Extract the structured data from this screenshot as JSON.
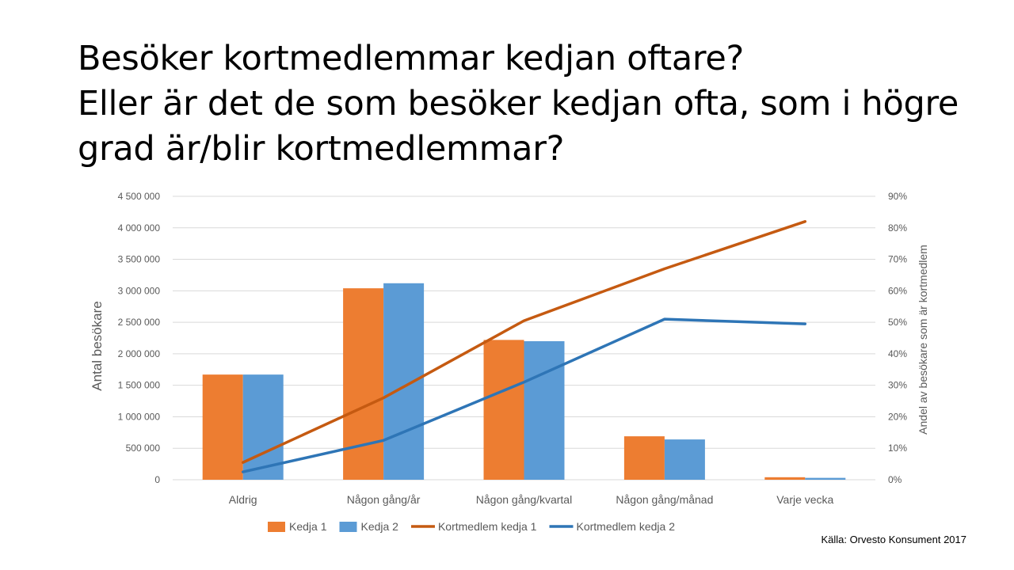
{
  "slide": {
    "title_line1": "Besöker kortmedlemmar kedjan oftare?",
    "title_line2": "Eller är det de som besöker kedjan ofta, som i högre",
    "title_line3": "grad är/blir kortmedlemmar?",
    "source": "Källa: Orvesto Konsument 2017"
  },
  "chart_data": {
    "type": "bar",
    "categories": [
      "Aldrig",
      "Någon gång/år",
      "Någon gång/kvartal",
      "Någon gång/månad",
      "Varje vecka"
    ],
    "series": [
      {
        "name": "Kedja 1",
        "type": "bar",
        "axis": "left",
        "color": "#ED7D31",
        "values": [
          1670000,
          3040000,
          2220000,
          690000,
          40000
        ]
      },
      {
        "name": "Kedja 2",
        "type": "bar",
        "axis": "left",
        "color": "#5B9BD5",
        "values": [
          1670000,
          3120000,
          2200000,
          640000,
          30000
        ]
      },
      {
        "name": "Kortmedlem kedja 1",
        "type": "line",
        "axis": "right",
        "color": "#C55A11",
        "values": [
          0.055,
          0.26,
          0.505,
          0.67,
          0.82
        ]
      },
      {
        "name": "Kortmedlem kedja 2",
        "type": "line",
        "axis": "right",
        "color": "#2E75B6",
        "values": [
          0.025,
          0.125,
          0.31,
          0.51,
          0.495
        ]
      }
    ],
    "ylabel": "Antal besökare",
    "y2label": "Andel av besökare som är kortmedlem",
    "ylim": [
      0,
      4500000
    ],
    "y2lim": [
      0,
      0.9
    ],
    "yticks": [
      "0",
      "500 000",
      "1 000 000",
      "1 500 000",
      "2 000 000",
      "2 500 000",
      "3 000 000",
      "3 500 000",
      "4 000 000",
      "4 500 000"
    ],
    "y2ticks": [
      "0%",
      "10%",
      "20%",
      "30%",
      "40%",
      "50%",
      "60%",
      "70%",
      "80%",
      "90%"
    ],
    "grid": true,
    "legend_position": "bottom"
  }
}
